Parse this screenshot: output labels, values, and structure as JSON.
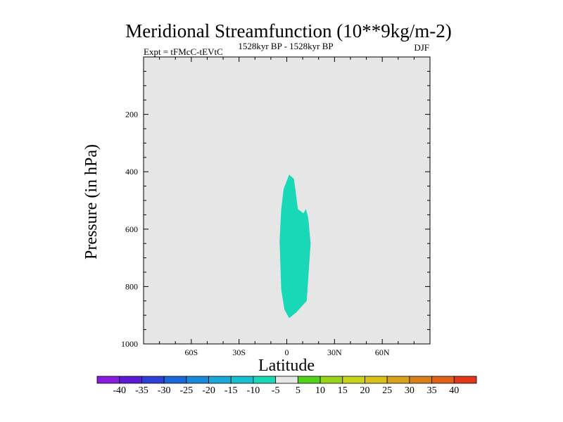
{
  "chart_data": {
    "type": "contour",
    "title": "Meridional Streamfunction (10**9kg/m-2)",
    "subtitle_left": "Expt = tFMcC-tEVtC",
    "subtitle_center": "1528kyr BP - 1528kyr BP",
    "subtitle_right": "DJF",
    "xlabel": "Latitude",
    "ylabel": "Pressure (in hPa)",
    "xlim": [
      -90,
      90
    ],
    "ylim": [
      1000,
      0
    ],
    "x_ticks": [
      {
        "value": -60,
        "label": "60S"
      },
      {
        "value": -30,
        "label": "30S"
      },
      {
        "value": 0,
        "label": "0"
      },
      {
        "value": 30,
        "label": "30N"
      },
      {
        "value": 60,
        "label": "60N"
      }
    ],
    "y_ticks": [
      {
        "value": 200,
        "label": "200"
      },
      {
        "value": 400,
        "label": "400"
      },
      {
        "value": 600,
        "label": "600"
      },
      {
        "value": 800,
        "label": "800"
      },
      {
        "value": 1000,
        "label": "1000"
      }
    ],
    "background_color": "#e6e6e6",
    "filled_region": {
      "level": "-10 to -5",
      "color": "#19d8b8",
      "boundary": [
        {
          "lat": 1.5,
          "p": 410
        },
        {
          "lat": 4.5,
          "p": 425
        },
        {
          "lat": 7.0,
          "p": 530
        },
        {
          "lat": 10.5,
          "p": 545
        },
        {
          "lat": 12.0,
          "p": 530
        },
        {
          "lat": 13.5,
          "p": 560
        },
        {
          "lat": 15.0,
          "p": 650
        },
        {
          "lat": 12.5,
          "p": 850
        },
        {
          "lat": 6.0,
          "p": 890
        },
        {
          "lat": 1.5,
          "p": 910
        },
        {
          "lat": -1.5,
          "p": 880
        },
        {
          "lat": -3.5,
          "p": 810
        },
        {
          "lat": -4.5,
          "p": 640
        },
        {
          "lat": -3.5,
          "p": 530
        },
        {
          "lat": -2.0,
          "p": 460
        }
      ]
    },
    "colorbar": {
      "labels": [
        "-40",
        "-35",
        "-30",
        "-25",
        "-20",
        "-15",
        "-10",
        "-5",
        "5",
        "10",
        "15",
        "20",
        "25",
        "30",
        "35",
        "40"
      ],
      "colors": [
        "#8a1be0",
        "#5a1ad6",
        "#2e3ed8",
        "#1a68d8",
        "#1a8ad8",
        "#1aa8d8",
        "#18c0cf",
        "#19d8b8",
        "#e6e6e6",
        "#52d11f",
        "#98d51a",
        "#c6d41a",
        "#d8c21a",
        "#d8a21a",
        "#d8801a",
        "#e0601a",
        "#e03818"
      ]
    }
  }
}
